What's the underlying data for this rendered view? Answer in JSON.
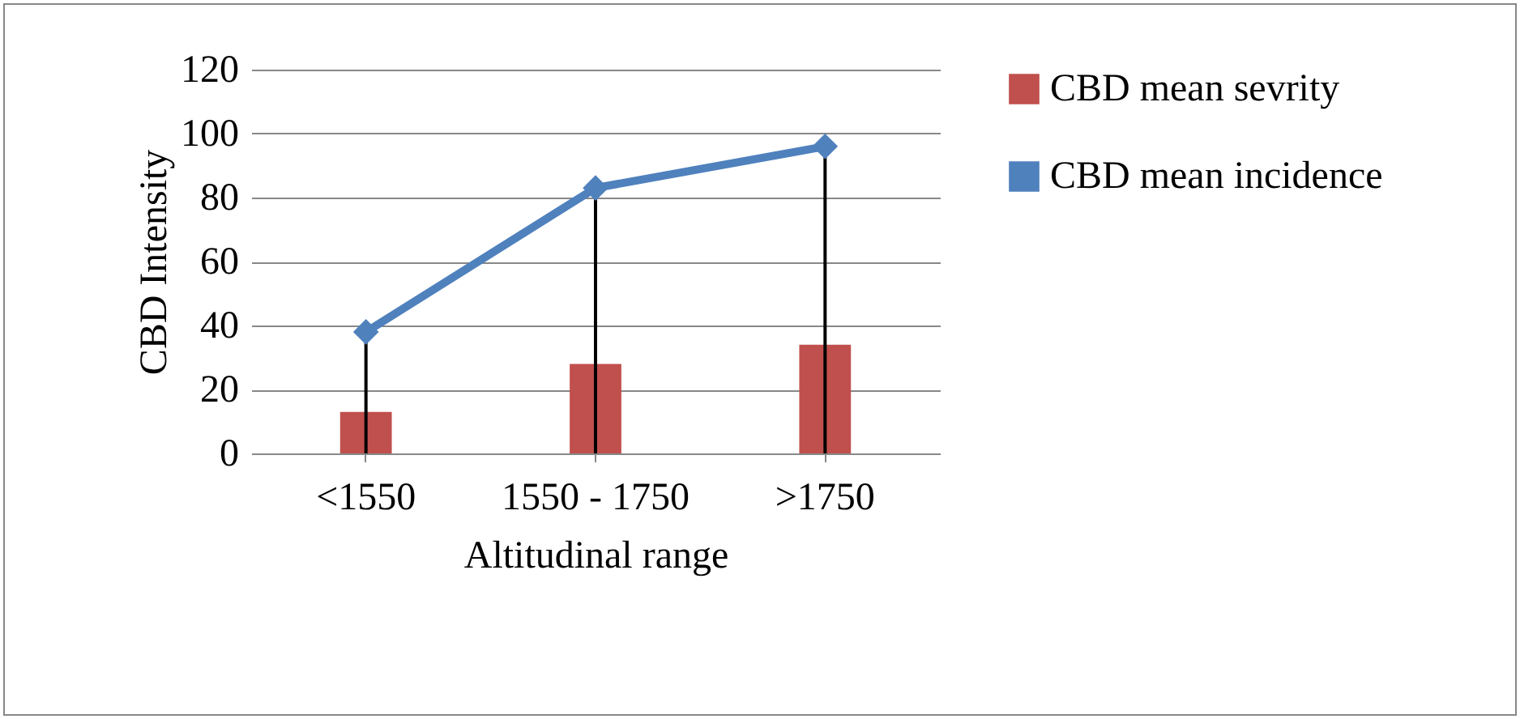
{
  "chart_data": {
    "type": "bar",
    "xlabel": "Altitudinal range",
    "ylabel": "CBD Intensity",
    "categories": [
      "<1550",
      "1550 - 1750",
      ">1750"
    ],
    "series": [
      {
        "name": "CBD mean sevrity",
        "color": "#c0504d",
        "values": [
          13,
          28,
          34
        ]
      },
      {
        "name": "CBD mean incidence",
        "type": "line",
        "color": "#4f81bd",
        "marker": "diamond",
        "values": [
          38,
          83,
          96
        ],
        "errors": [
          [
            0,
            38
          ],
          [
            0,
            83
          ],
          [
            0,
            96
          ]
        ]
      }
    ],
    "ylim": [
      0,
      120
    ],
    "yticks": [
      0,
      20,
      40,
      60,
      80,
      100,
      120
    ],
    "grid": "y",
    "legend": "right"
  }
}
